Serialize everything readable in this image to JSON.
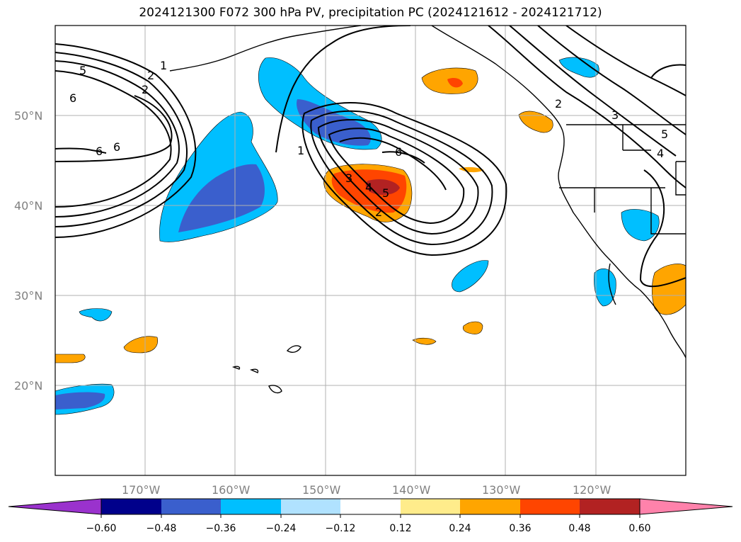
{
  "title": "2024121300 F072 300 hPa PV, precipitation PC (2024121612 - 2024121712)",
  "map": {
    "projection": "Plate Carree",
    "lon_range": [
      -180,
      -110
    ],
    "lat_range": [
      10,
      60
    ],
    "lat_gridlines": [
      {
        "value": 50,
        "label": "50°N"
      },
      {
        "value": 40,
        "label": "40°N"
      },
      {
        "value": 30,
        "label": "30°N"
      },
      {
        "value": 20,
        "label": "20°N"
      }
    ],
    "lon_gridlines": [
      {
        "value": -170,
        "label": "170°W"
      },
      {
        "value": -160,
        "label": "160°W"
      },
      {
        "value": -150,
        "label": "150°W"
      },
      {
        "value": -140,
        "label": "140°W"
      },
      {
        "value": -130,
        "label": "130°W"
      },
      {
        "value": -120,
        "label": "120°W"
      }
    ],
    "contour_labels": [
      "5",
      "6",
      "1",
      "2",
      "2",
      "6",
      "6",
      "1",
      "6",
      "5",
      "4",
      "3",
      "2",
      "2",
      "3",
      "4",
      "5"
    ]
  },
  "colorbar": {
    "ticks": [
      "−0.60",
      "−0.48",
      "−0.36",
      "−0.24",
      "−0.12",
      "0.12",
      "0.24",
      "0.36",
      "0.48",
      "0.60"
    ],
    "colors": [
      "#9a32cd",
      "#00008b",
      "#3a5fcd",
      "#00bfff",
      "#b0e2ff",
      "#ffffff",
      "#ffec8b",
      "#ffa500",
      "#ff4500",
      "#b22222",
      "#ff82ab"
    ]
  }
}
